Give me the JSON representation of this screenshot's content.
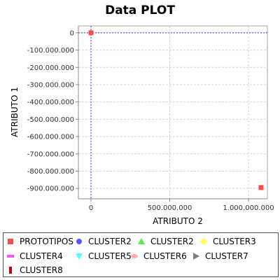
{
  "chart_data": {
    "type": "scatter",
    "title": "Data PLOT",
    "xlabel": "ATRIBUTO 2",
    "ylabel": "ATRIBUTO 1",
    "xlim": [
      -80000000,
      1120000000
    ],
    "ylim": [
      -960000000,
      40000000
    ],
    "x_ticks": [
      {
        "value": 0,
        "label": "0"
      },
      {
        "value": 500000000,
        "label": "500.000.000"
      },
      {
        "value": 1000000000,
        "label": "1.000.000.000"
      }
    ],
    "y_ticks": [
      {
        "value": 0,
        "label": "0"
      },
      {
        "value": -100000000,
        "label": "-100.000.000"
      },
      {
        "value": -200000000,
        "label": "-200.000.000"
      },
      {
        "value": -300000000,
        "label": "-300.000.000"
      },
      {
        "value": -400000000,
        "label": "-400.000.000"
      },
      {
        "value": -500000000,
        "label": "-500.000.000"
      },
      {
        "value": -600000000,
        "label": "-600.000.000"
      },
      {
        "value": -700000000,
        "label": "-700.000.000"
      },
      {
        "value": -800000000,
        "label": "-800.000.000"
      },
      {
        "value": -900000000,
        "label": "-900.000.000"
      }
    ],
    "grid": true,
    "crosshair": {
      "x": 0,
      "y": 0
    },
    "series": [
      {
        "name": "PROTOTIPOS",
        "color": "#f05050",
        "marker": "square",
        "points": [
          {
            "x": 0,
            "y": 0
          },
          {
            "x": 1080000000,
            "y": -895000000
          }
        ]
      }
    ],
    "legend": [
      {
        "name": "PROTOTIPOS",
        "color": "#f05050",
        "marker": "square"
      },
      {
        "name": "CLUSTER2",
        "color": "#5a5aff",
        "marker": "circle"
      },
      {
        "name": "CLUSTER2",
        "color": "#55ee55",
        "marker": "triangle-up"
      },
      {
        "name": "CLUSTER3",
        "color": "#ffff55",
        "marker": "diamond"
      },
      {
        "name": "CLUSTER4",
        "color": "#ff55ff",
        "marker": "rect-horizontal"
      },
      {
        "name": "CLUSTER5",
        "color": "#55ffff",
        "marker": "triangle-down"
      },
      {
        "name": "CLUSTER6",
        "color": "#ffafaf",
        "marker": "ellipse"
      },
      {
        "name": "CLUSTER7",
        "color": "#808080",
        "marker": "triangle-right"
      },
      {
        "name": "CLUSTER8",
        "color": "#c00000",
        "marker": "rect-vertical"
      }
    ],
    "legend_position": "bottom"
  }
}
